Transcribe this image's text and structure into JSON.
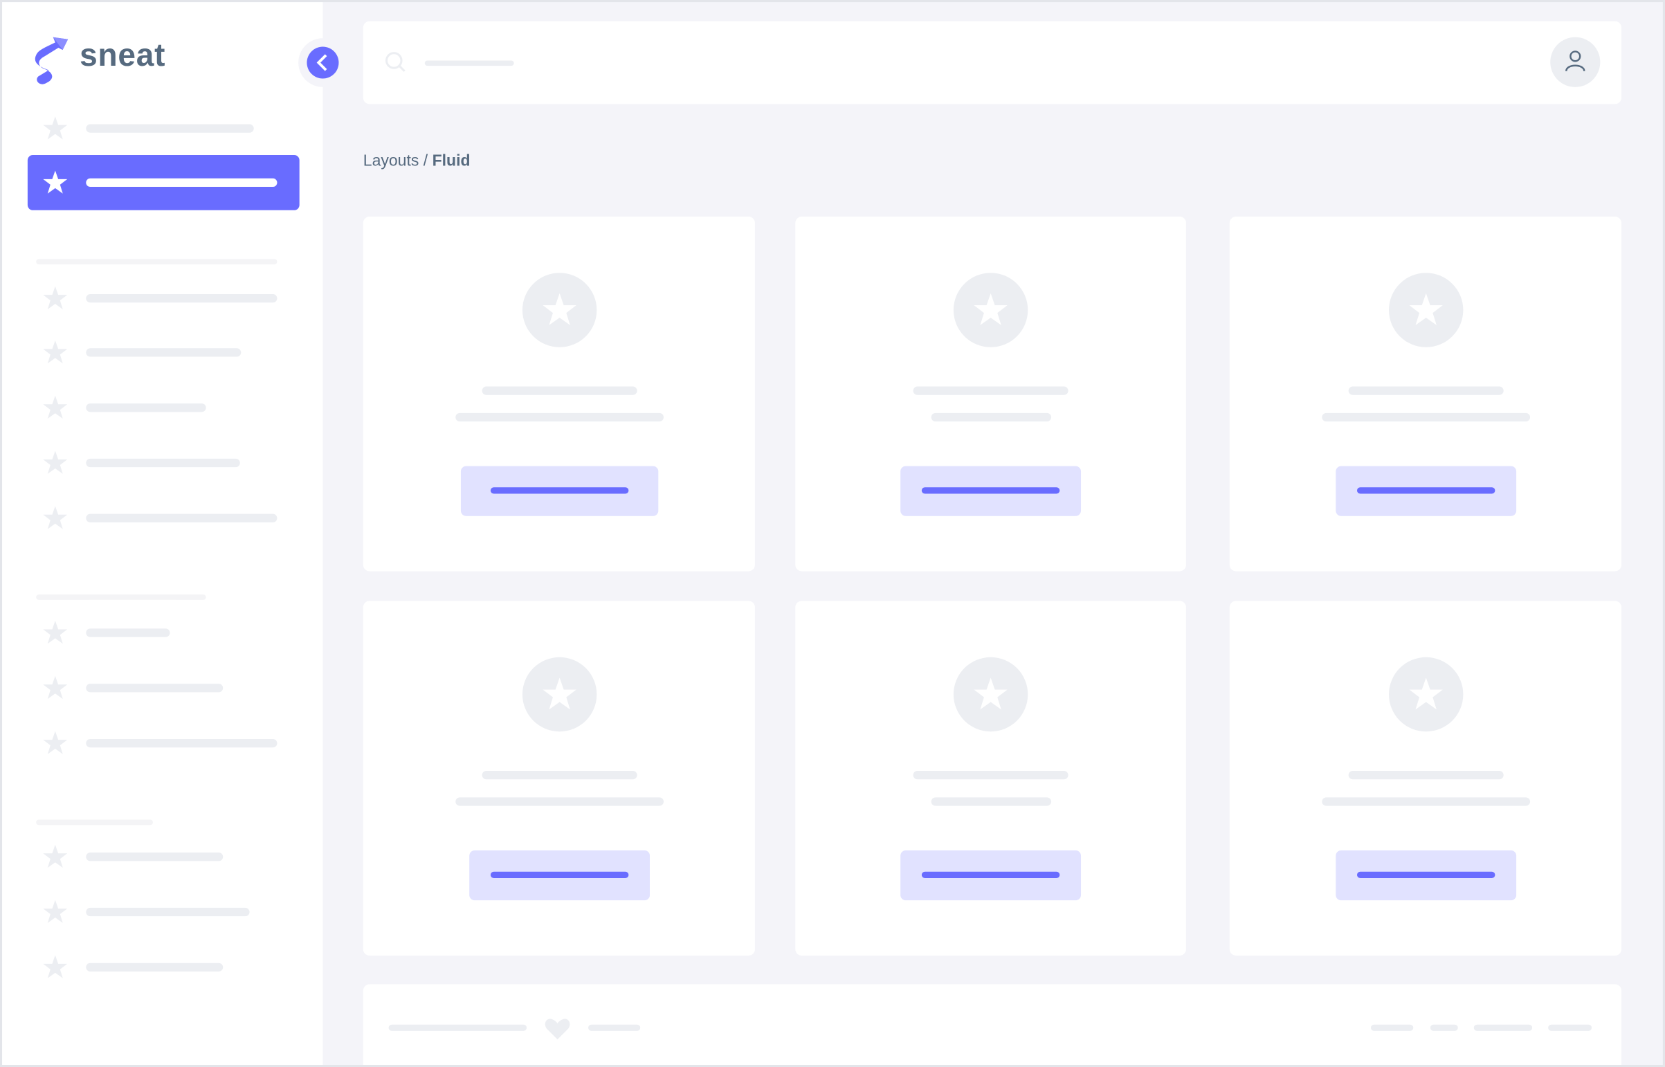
{
  "brand": {
    "name": "sneat",
    "logo_icon": "sneat-s-logo"
  },
  "colors": {
    "primary": "#696cff",
    "primary_light": "#e1e2ff",
    "placeholder": "#eceef2",
    "background": "#f4f4f9",
    "text": "#566a7f"
  },
  "breadcrumb": {
    "parent": "Layouts",
    "separator": " / ",
    "current": "Fluid"
  },
  "header": {
    "search_icon": "search-icon",
    "user_icon": "user-icon"
  },
  "sidebar": {
    "toggle_icon": "chevron-left-icon",
    "item_icon": "star-icon",
    "active_index": 1
  },
  "footer": {
    "icon": "heart-icon"
  }
}
